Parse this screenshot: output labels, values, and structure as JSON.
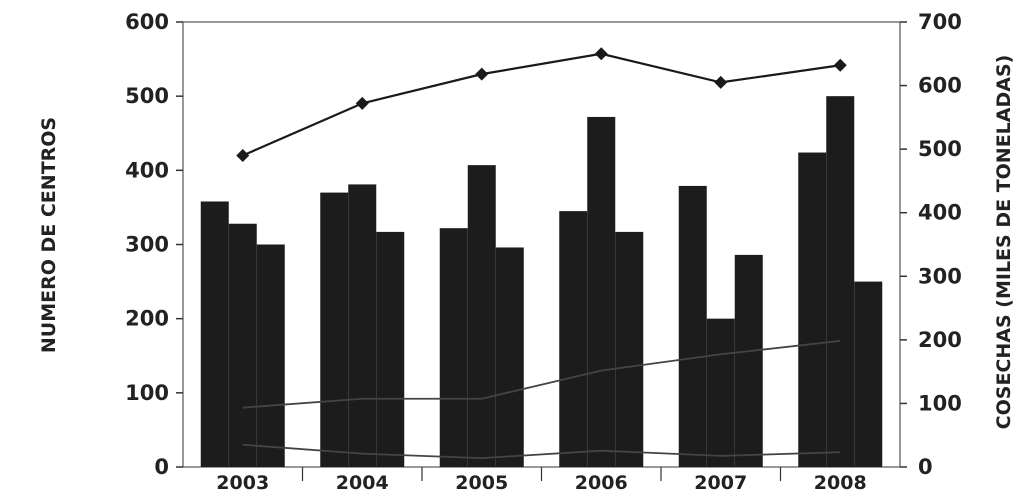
{
  "chart_data": {
    "type": "bar",
    "categories": [
      "2003",
      "2004",
      "2005",
      "2006",
      "2007",
      "2008"
    ],
    "y_left": {
      "label": "NUMERO DE CENTROS",
      "range": [
        0,
        600
      ],
      "ticks": [
        "0",
        "100",
        "200",
        "300",
        "400",
        "500",
        "600"
      ]
    },
    "y_right": {
      "label": "COSECHAS (MILES DE TONELADAS)",
      "range": [
        0,
        700
      ],
      "ticks": [
        "0",
        "100",
        "200",
        "300",
        "400",
        "500",
        "600",
        "700"
      ]
    },
    "bar_series": [
      {
        "values": [
          358,
          370,
          322,
          345,
          379,
          424
        ]
      },
      {
        "values": [
          328,
          381,
          407,
          472,
          200,
          500
        ]
      },
      {
        "values": [
          300,
          317,
          296,
          317,
          286,
          250
        ]
      }
    ],
    "line_series": [
      {
        "axis": "right",
        "marker": "diamond",
        "values": [
          490,
          572,
          618,
          650,
          605,
          632
        ]
      },
      {
        "axis": "left",
        "values": [
          80,
          92,
          92,
          130,
          152,
          170
        ]
      },
      {
        "axis": "left",
        "values": [
          30,
          18,
          12,
          22,
          15,
          20
        ]
      }
    ],
    "colors": {
      "bars": "#1c1c1c",
      "line": "#1a1a1a",
      "background": "#ffffff"
    },
    "grid": false,
    "legend": "none"
  }
}
